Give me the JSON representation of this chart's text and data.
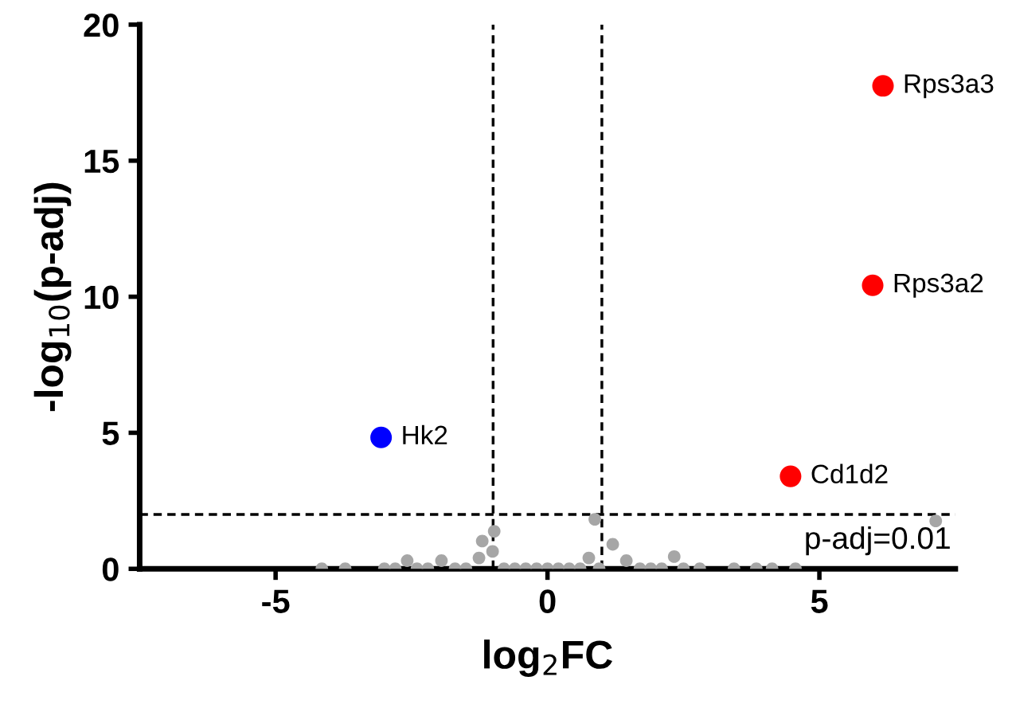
{
  "chart_data": {
    "type": "scatter",
    "xlabel": "log$_{2}$FC",
    "ylabel": "-log$_{10}$(p-adj)",
    "xlim": [
      -7.5,
      7.5
    ],
    "xticks": [
      -5,
      0,
      5
    ],
    "ylim": [
      0,
      20
    ],
    "yticks": [
      0,
      5,
      10,
      15,
      20
    ],
    "grid": false,
    "legend": false,
    "marker": "circle",
    "series": [
      {
        "color": "#a6a6a6",
        "x": [
          -4.15,
          -3.72,
          -3.0,
          -2.8,
          -2.58,
          -2.4,
          -2.2,
          -1.95,
          -1.7,
          -1.5,
          -1.26,
          -1.2,
          -1.01,
          -0.98,
          -0.8,
          -0.6,
          -0.4,
          -0.2,
          0.0,
          0.2,
          0.4,
          0.6,
          0.76,
          0.87,
          0.95,
          1.2,
          1.45,
          1.7,
          1.9,
          2.1,
          2.33,
          2.5,
          2.8,
          3.43,
          3.84,
          4.13,
          4.56,
          7.14
        ],
        "values": [
          0,
          0,
          0,
          0,
          0.3,
          0,
          0,
          0.3,
          0,
          0,
          0.4,
          1.02,
          0.64,
          1.38,
          0,
          0,
          0,
          0,
          0,
          0,
          0,
          0,
          0.4,
          1.82,
          0,
          0.9,
          0.3,
          0,
          0,
          0,
          0.45,
          0,
          0,
          0,
          0,
          0,
          0,
          1.76
        ]
      },
      {
        "color": "#ff0000",
        "x": [
          6.17,
          5.98,
          4.47
        ],
        "values": [
          17.75,
          10.42,
          3.4
        ]
      },
      {
        "color": "#0000ff",
        "x": [
          -3.06
        ],
        "values": [
          4.83
        ]
      }
    ],
    "ref_lines": [
      {
        "axis": "x",
        "value": -1,
        "line_style": "dashed",
        "color": "#000000"
      },
      {
        "axis": "x",
        "value": 1,
        "line_style": "dashed",
        "color": "#000000"
      },
      {
        "axis": "y",
        "value": 2,
        "line_style": "dashed",
        "color": "#000000"
      }
    ],
    "annotations": [
      {
        "text": "Rps3a3",
        "x": 6.17,
        "y": 17.75
      },
      {
        "text": "Rps3a2",
        "x": 5.98,
        "y": 10.42
      },
      {
        "text": "Cd1d2",
        "x": 4.47,
        "y": 3.4
      },
      {
        "text": "Hk2",
        "x": -3.06,
        "y": 4.83
      },
      "p-adj=0.01"
    ]
  }
}
